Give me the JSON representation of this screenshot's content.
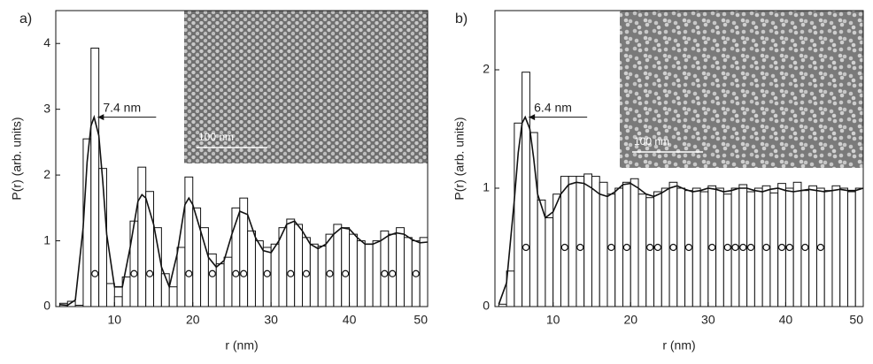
{
  "chart_data": [
    {
      "type": "histogram",
      "panel_label": "a)",
      "xlabel": "r (nm)",
      "ylabel": "P(r) (arb. units)",
      "bins": [
        3,
        4,
        5,
        6,
        7,
        8,
        9,
        10,
        11,
        12,
        13,
        14,
        15,
        16,
        17,
        18,
        19,
        20,
        21,
        22,
        23,
        24,
        25,
        26,
        27,
        28,
        29,
        30,
        31,
        32,
        33,
        34,
        35,
        36,
        37,
        38,
        39,
        40,
        41,
        42,
        43,
        44,
        45,
        46,
        47,
        48,
        49,
        50
      ],
      "values": [
        0.05,
        0.08,
        0.02,
        2.55,
        3.93,
        2.1,
        0.35,
        0.15,
        0.45,
        1.3,
        2.12,
        1.75,
        1.2,
        0.5,
        0.3,
        0.9,
        1.97,
        1.5,
        1.2,
        0.8,
        0.65,
        0.75,
        1.5,
        1.65,
        1.15,
        1.0,
        0.9,
        0.95,
        1.2,
        1.33,
        1.25,
        1.05,
        0.95,
        0.92,
        1.1,
        1.25,
        1.2,
        1.1,
        1.0,
        0.95,
        1.0,
        1.15,
        1.1,
        1.2,
        1.05,
        1.0,
        1.05
      ],
      "fit": {
        "x": [
          3,
          4,
          5,
          6,
          6.5,
          7,
          7.4,
          8,
          8.5,
          9,
          10,
          11,
          12,
          13,
          13.5,
          14,
          15,
          16,
          17,
          18,
          19,
          19.5,
          20,
          21,
          22,
          23,
          24,
          25,
          26,
          27,
          28,
          29,
          30,
          31,
          32,
          33,
          34,
          35,
          36,
          37,
          38,
          39,
          40,
          41,
          42,
          43,
          44,
          45,
          46,
          47,
          48,
          49,
          50
        ],
        "y": [
          0.03,
          0.02,
          0.1,
          1.2,
          2.2,
          2.75,
          2.88,
          2.6,
          1.9,
          1.1,
          0.3,
          0.3,
          0.9,
          1.6,
          1.7,
          1.65,
          1.25,
          0.6,
          0.3,
          0.8,
          1.55,
          1.65,
          1.55,
          1.15,
          0.75,
          0.6,
          0.7,
          1.1,
          1.45,
          1.4,
          1.05,
          0.85,
          0.82,
          1.0,
          1.25,
          1.3,
          1.15,
          0.95,
          0.88,
          0.95,
          1.1,
          1.2,
          1.18,
          1.05,
          0.95,
          0.95,
          1.0,
          1.08,
          1.12,
          1.1,
          1.02,
          0.97,
          0.98
        ]
      },
      "points": {
        "x": [
          7.5,
          12.5,
          14.5,
          19.5,
          22.5,
          25.5,
          26.5,
          29.5,
          32.5,
          34.5,
          37.5,
          39.5,
          44.5,
          45.5,
          48.5
        ],
        "y": [
          0.5,
          0.5,
          0.5,
          0.5,
          0.5,
          0.5,
          0.5,
          0.5,
          0.5,
          0.5,
          0.5,
          0.5,
          0.5,
          0.5,
          0.5
        ]
      },
      "annotation": "7.4 nm",
      "inset_scale": "100 nm",
      "xlim": [
        2.5,
        50
      ],
      "ylim": [
        0,
        4.5
      ],
      "xticks": [
        10,
        20,
        30,
        40,
        50
      ],
      "yticks": [
        0,
        1,
        2,
        3,
        4
      ]
    },
    {
      "type": "histogram",
      "panel_label": "b)",
      "xlabel": "r (nm)",
      "ylabel": "P(r) (arb. units)",
      "bins": [
        3,
        4,
        5,
        6,
        7,
        8,
        9,
        10,
        11,
        12,
        13,
        14,
        15,
        16,
        17,
        18,
        19,
        20,
        21,
        22,
        23,
        24,
        25,
        26,
        27,
        28,
        29,
        30,
        31,
        32,
        33,
        34,
        35,
        36,
        37,
        38,
        39,
        40,
        41,
        42,
        43,
        44,
        45,
        46,
        47,
        48,
        49,
        50
      ],
      "values": [
        0.02,
        0.3,
        1.55,
        1.98,
        1.47,
        0.9,
        0.75,
        0.95,
        1.1,
        1.1,
        1.1,
        1.12,
        1.1,
        1.05,
        0.95,
        1.0,
        1.05,
        1.08,
        0.95,
        0.92,
        0.97,
        1.0,
        1.05,
        1.0,
        0.98,
        1.0,
        0.97,
        1.02,
        1.0,
        0.95,
        1.0,
        1.03,
        0.97,
        1.0,
        1.02,
        0.96,
        1.04,
        1.0,
        1.05,
        0.98,
        1.02,
        1.0,
        0.98,
        1.02,
        1.0,
        0.97,
        1.0
      ],
      "fit": {
        "x": [
          3,
          4,
          5,
          5.5,
          6,
          6.4,
          7,
          7.5,
          8,
          9,
          10,
          11,
          12,
          13,
          14,
          15,
          16,
          17,
          18,
          19,
          20,
          21,
          22,
          23,
          24,
          25,
          26,
          27,
          28,
          29,
          30,
          31,
          32,
          33,
          34,
          35,
          36,
          37,
          38,
          39,
          40,
          41,
          42,
          43,
          44,
          45,
          46,
          47,
          48,
          49,
          50
        ],
        "y": [
          0.02,
          0.2,
          0.9,
          1.3,
          1.55,
          1.6,
          1.5,
          1.25,
          0.95,
          0.75,
          0.8,
          0.95,
          1.03,
          1.05,
          1.04,
          1.0,
          0.95,
          0.93,
          0.97,
          1.03,
          1.04,
          1.0,
          0.95,
          0.93,
          0.96,
          1.0,
          1.02,
          0.99,
          0.97,
          0.98,
          1.0,
          0.99,
          0.97,
          0.98,
          1.0,
          1.0,
          0.98,
          0.97,
          0.99,
          1.0,
          0.98,
          0.97,
          0.98,
          0.99,
          0.98,
          0.97,
          0.98,
          0.99,
          0.98,
          0.98,
          1.0
        ]
      },
      "points": {
        "x": [
          6.5,
          11.5,
          13.5,
          17.5,
          19.5,
          22.5,
          23.5,
          25.5,
          27.5,
          30.5,
          32.5,
          33.5,
          34.5,
          35.5,
          37.5,
          39.5,
          40.5,
          42.5,
          44.5
        ],
        "y": [
          0.5,
          0.5,
          0.5,
          0.5,
          0.5,
          0.5,
          0.5,
          0.5,
          0.5,
          0.5,
          0.5,
          0.5,
          0.5,
          0.5,
          0.5,
          0.5,
          0.5,
          0.5,
          0.5
        ]
      },
      "annotation": "6.4 nm",
      "inset_scale": "100 nm",
      "xlim": [
        2.5,
        50
      ],
      "ylim": [
        0,
        2.5
      ],
      "xticks": [
        10,
        20,
        30,
        40,
        50
      ],
      "yticks": [
        0,
        1,
        2
      ]
    }
  ]
}
